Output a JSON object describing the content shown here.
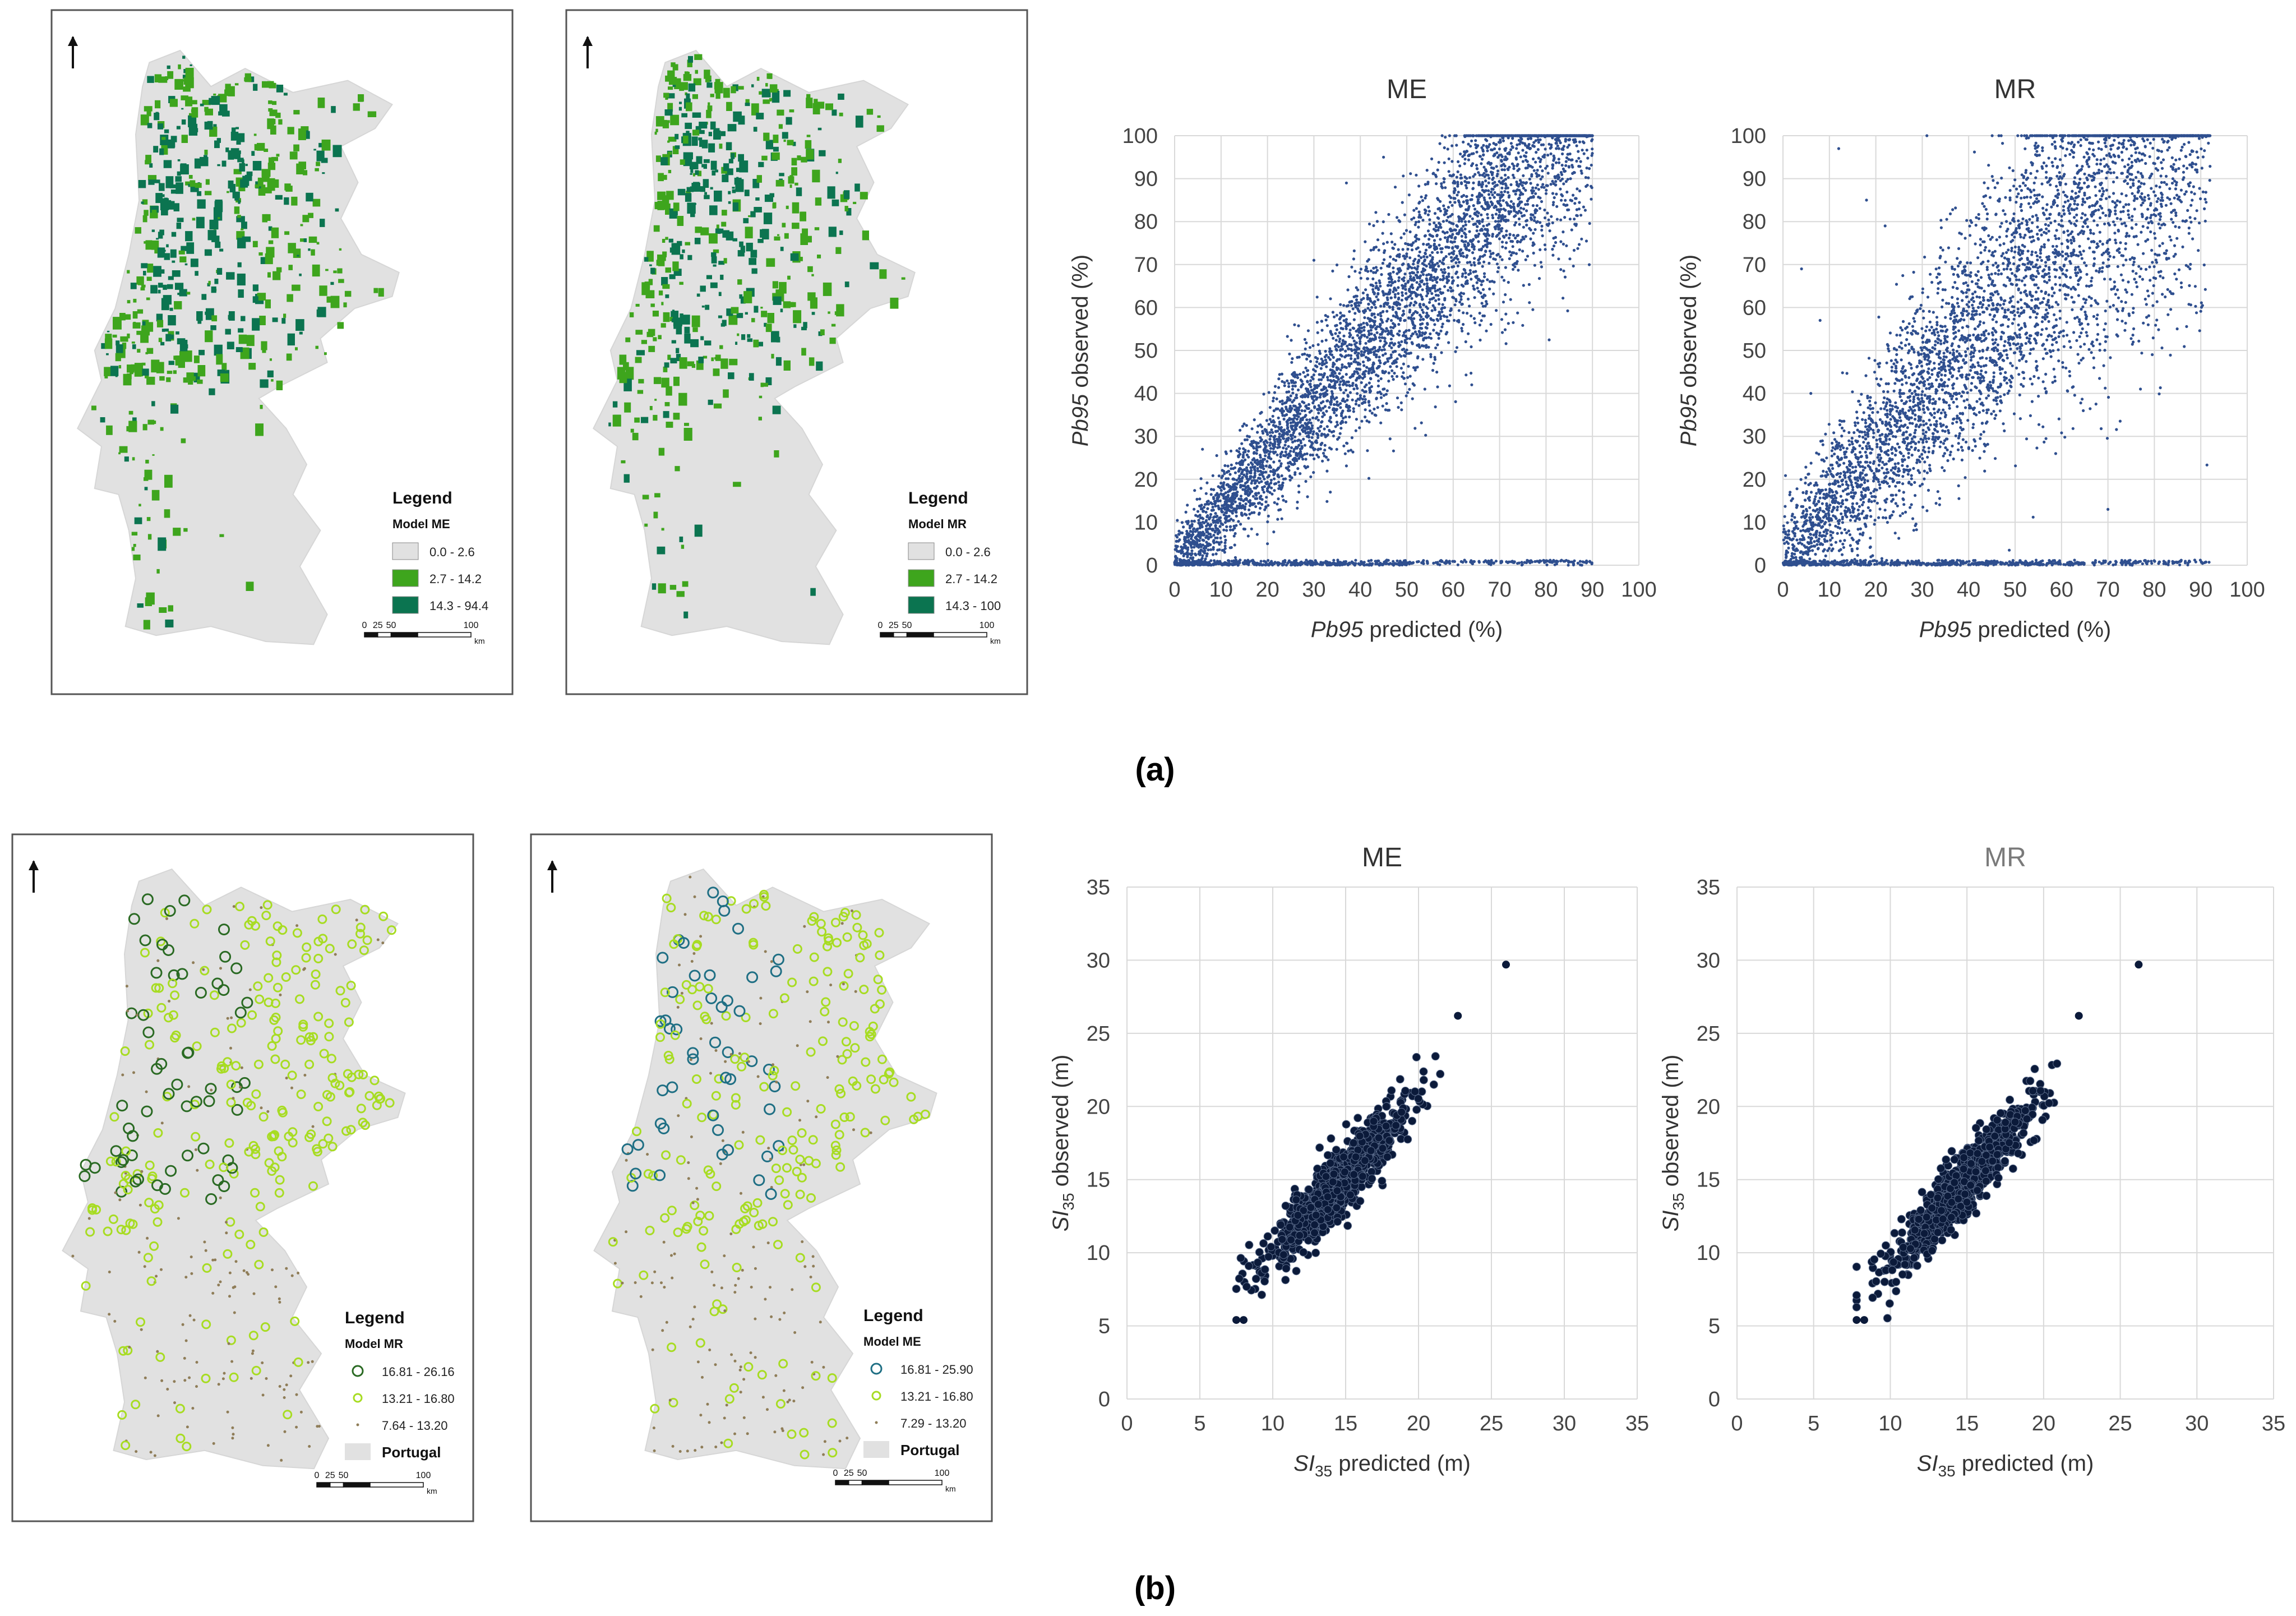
{
  "figure": {
    "panel_a_label": "(a)",
    "panel_b_label": "(b)"
  },
  "maps": [
    {
      "id": "map-a-me",
      "type": "raster",
      "legend_title": "Legend",
      "model_title": "Model ME",
      "classes": [
        {
          "label": "0.0 - 2.6",
          "color": "#e1e1e1"
        },
        {
          "label": "2.7 - 14.2",
          "color": "#3ea51d"
        },
        {
          "label": "14.3 - 94.4",
          "color": "#0b7450"
        }
      ],
      "scale_labels": [
        "0",
        "25",
        "50",
        "100"
      ],
      "scale_unit": "km"
    },
    {
      "id": "map-a-mr",
      "type": "raster",
      "legend_title": "Legend",
      "model_title": "Model MR",
      "classes": [
        {
          "label": "0.0 - 2.6",
          "color": "#e1e1e1"
        },
        {
          "label": "2.7 - 14.2",
          "color": "#3ea51d"
        },
        {
          "label": "14.3 - 100",
          "color": "#0b7450"
        }
      ],
      "scale_labels": [
        "0",
        "25",
        "50",
        "100"
      ],
      "scale_unit": "km"
    },
    {
      "id": "map-b-mr",
      "type": "points",
      "legend_title": "Legend",
      "model_title": "Model MR",
      "ring_color": "#2a6a23",
      "classes": [
        {
          "label": "16.81 - 26.16",
          "color": "#2a6a23"
        },
        {
          "label": "13.21 - 16.80",
          "color": "#a7dc22"
        },
        {
          "label": "7.64 - 13.20",
          "color": "#8f7d58"
        }
      ],
      "country_label": "Portugal",
      "scale_labels": [
        "0",
        "25",
        "50",
        "100"
      ],
      "scale_unit": "km"
    },
    {
      "id": "map-b-me",
      "type": "points",
      "legend_title": "Legend",
      "model_title": "Model ME",
      "ring_color": "#1f6f84",
      "classes": [
        {
          "label": "16.81 - 25.90",
          "color": "#1f6f84"
        },
        {
          "label": "13.21 - 16.80",
          "color": "#a7dc22"
        },
        {
          "label": "7.29 - 13.20",
          "color": "#8f7d58"
        }
      ],
      "country_label": "Portugal",
      "scale_labels": [
        "0",
        "25",
        "50",
        "100"
      ],
      "scale_unit": "km"
    }
  ],
  "chart_data": [
    {
      "type": "scatter",
      "id": "a-me",
      "title": "ME",
      "xlabel_italic": "Pb95",
      "xlabel": " predicted (%)",
      "ylabel_italic": "Pb95",
      "ylabel": " observed (%)",
      "xlim": [
        0,
        100
      ],
      "ylim": [
        0,
        100
      ],
      "xticks": [
        0,
        10,
        20,
        30,
        40,
        50,
        60,
        70,
        80,
        90,
        100
      ],
      "yticks": [
        0,
        10,
        20,
        30,
        40,
        50,
        60,
        70,
        80,
        90,
        100
      ],
      "grid": true,
      "marker_color": "#2f4f8f",
      "marker_size": 2,
      "n_points_approx": 30000,
      "trend_slope": 1.25,
      "trend_spread": 9,
      "outlier_points": [
        [
          30,
          71
        ],
        [
          37,
          89
        ],
        [
          64,
          42
        ],
        [
          20,
          5
        ],
        [
          6,
          27
        ],
        [
          45,
          95
        ]
      ]
    },
    {
      "type": "scatter",
      "id": "a-mr",
      "title": "MR",
      "xlabel_italic": "Pb95",
      "xlabel": " predicted (%)",
      "ylabel_italic": "Pb95",
      "ylabel": " observed (%)",
      "xlim": [
        0,
        100
      ],
      "ylim": [
        0,
        100
      ],
      "xticks": [
        0,
        10,
        20,
        30,
        40,
        50,
        60,
        70,
        80,
        90,
        100
      ],
      "yticks": [
        0,
        10,
        20,
        30,
        40,
        50,
        60,
        70,
        80,
        90,
        100
      ],
      "grid": true,
      "marker_color": "#2f4f8f",
      "marker_size": 2,
      "n_points_approx": 30000,
      "trend_slope": 1.3,
      "trend_spread": 14,
      "outlier_points": [
        [
          4,
          69
        ],
        [
          6,
          40
        ],
        [
          8,
          57
        ],
        [
          18,
          85
        ],
        [
          22,
          79
        ],
        [
          31,
          100
        ],
        [
          58,
          98
        ],
        [
          70,
          13
        ],
        [
          77,
          41
        ],
        [
          12,
          97
        ]
      ]
    },
    {
      "type": "scatter",
      "id": "b-me",
      "title": "ME",
      "xlabel_italic": "SI",
      "xlabel_sub": "35",
      "xlabel": " predicted (m)",
      "ylabel_italic": "SI",
      "ylabel_sub": "35",
      "ylabel": " observed (m)",
      "xlim": [
        0,
        35
      ],
      "ylim": [
        0,
        35
      ],
      "xticks": [
        0,
        5,
        10,
        15,
        20,
        25,
        30,
        35
      ],
      "yticks": [
        0,
        5,
        10,
        15,
        20,
        25,
        30,
        35
      ],
      "grid": true,
      "marker_color": "#0b1a3a",
      "marker_size": 5,
      "n_points_approx": 1000,
      "x_range": [
        7.5,
        22.5
      ],
      "trend_slope": 1.05,
      "trend_intercept": -0.5,
      "trend_spread": 1.1,
      "outlier_points": [
        [
          7.5,
          5.4
        ],
        [
          8,
          5.4
        ],
        [
          22.7,
          26.2
        ],
        [
          26,
          29.7
        ]
      ]
    },
    {
      "type": "scatter",
      "id": "b-mr",
      "title": "MR",
      "xlabel_italic": "SI",
      "xlabel_sub": "35",
      "xlabel": " predicted (m)",
      "ylabel_italic": "SI",
      "ylabel_sub": "35",
      "ylabel": " observed (m)",
      "xlim": [
        0,
        35
      ],
      "ylim": [
        0,
        35
      ],
      "xticks": [
        0,
        5,
        10,
        15,
        20,
        25,
        30,
        35
      ],
      "yticks": [
        0,
        5,
        10,
        15,
        20,
        25,
        30,
        35
      ],
      "grid": true,
      "marker_color": "#0b1a3a",
      "marker_size": 5,
      "n_points_approx": 1000,
      "x_range": [
        7.8,
        22.3
      ],
      "trend_slope": 1.15,
      "trend_intercept": -2.3,
      "trend_spread": 1.1,
      "outlier_points": [
        [
          7.8,
          5.4
        ],
        [
          8.3,
          5.4
        ],
        [
          22.3,
          26.2
        ],
        [
          26.2,
          29.7
        ]
      ]
    }
  ]
}
